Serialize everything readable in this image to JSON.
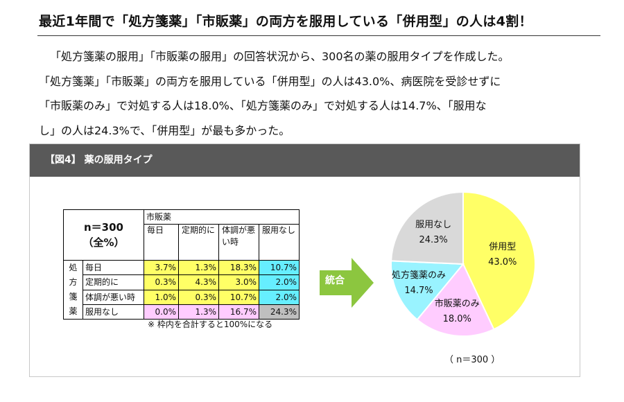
{
  "headline": "最近1年間で「処方箋薬」「市販薬」の両方を服用している「併用型」の人は4割！",
  "paragraph": [
    "「処方箋薬の服用」「市販薬の服用」の回答状況から、300名の薬の服用タイプを作成した。",
    "「処方箋薬」「市販薬」の両方を服用している「併用型」の人は43.0%、病医院を受診せずに",
    "「市販薬のみ」で対処する人は18.0%、「処方箋薬のみ」で対処する人は14.7%、「服用な",
    "し」の人は24.3%で、「併用型」が最も多かった。"
  ],
  "figure": {
    "header": "【図4】 薬の服用タイプ",
    "table": {
      "corner_line1": "n＝300",
      "corner_line2": "（全%）",
      "col_group": "市販薬",
      "col_heads": [
        "毎日",
        "定期的に",
        "体調が悪い時",
        "服用なし"
      ],
      "row_group": "処方箋薬",
      "rows": [
        {
          "label": "毎日",
          "values": [
            "3.7%",
            "1.3%",
            "18.3%",
            "10.7%"
          ]
        },
        {
          "label": "定期的に",
          "values": [
            "0.3%",
            "4.3%",
            "3.0%",
            "2.0%"
          ]
        },
        {
          "label": "体調が悪い時",
          "values": [
            "1.0%",
            "0.3%",
            "10.7%",
            "2.0%"
          ]
        },
        {
          "label": "服用なし",
          "values": [
            "0.0%",
            "1.3%",
            "16.7%",
            "24.3%"
          ]
        }
      ],
      "note": "※ 枠内を合計すると100%になる"
    },
    "arrow_label": "統合",
    "n_note": "（ n＝300 ）",
    "colors": {
      "yellow": "#ffff66",
      "cyan": "#66eeff",
      "pink": "#ffccff",
      "gray": "#d9d9d9",
      "arrow": "#8cc63f",
      "header_bg": "#595959"
    }
  },
  "chart_data": {
    "type": "pie",
    "slices": [
      {
        "name": "併用型",
        "value": 43.0,
        "label": "43.0%",
        "color": "#ffff66"
      },
      {
        "name": "市販薬のみ",
        "value": 18.0,
        "label": "18.0%",
        "color": "#ffccff"
      },
      {
        "name": "処方箋薬のみ",
        "value": 14.7,
        "label": "14.7%",
        "color": "#99f3ff"
      },
      {
        "name": "服用なし",
        "value": 24.3,
        "label": "24.3%",
        "color": "#d9d9d9"
      }
    ],
    "n_note": "（ n＝300 ）"
  }
}
